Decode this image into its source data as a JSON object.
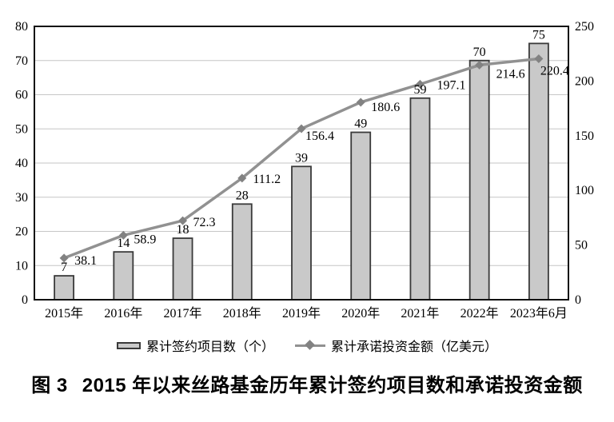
{
  "figure": {
    "caption_prefix": "图 3",
    "caption_text": "2015 年以来丝路基金历年累计签约项目数和承诺投资金额"
  },
  "chart_data": {
    "type": "combo_bar_line",
    "categories": [
      "2015年",
      "2016年",
      "2017年",
      "2018年",
      "2019年",
      "2020年",
      "2021年",
      "2022年",
      "2023年6月"
    ],
    "series": [
      {
        "name": "累计签约项目数（个）",
        "type": "bar",
        "axis": "left",
        "values": [
          7,
          14,
          18,
          28,
          39,
          49,
          59,
          70,
          75
        ]
      },
      {
        "name": "累计承诺投资金额（亿美元）",
        "type": "line",
        "axis": "right",
        "values": [
          38.1,
          58.9,
          72.3,
          111.2,
          156.4,
          180.6,
          197.1,
          214.6,
          220.4
        ]
      }
    ],
    "left_axis": {
      "min": 0,
      "max": 80,
      "ticks": [
        0,
        10,
        20,
        30,
        40,
        50,
        60,
        70,
        80
      ]
    },
    "right_axis": {
      "min": 0,
      "max": 250,
      "ticks": [
        0,
        50,
        100,
        150,
        200,
        250
      ]
    },
    "grid": true,
    "legend_position": "bottom",
    "colors": {
      "bar_fill": "#c9c9c9",
      "bar_stroke": "#3a3a3a",
      "line": "#919191",
      "marker": "#828282",
      "grid": "#c6c6c6",
      "axis_border": "#111111",
      "text": "#000000"
    }
  }
}
